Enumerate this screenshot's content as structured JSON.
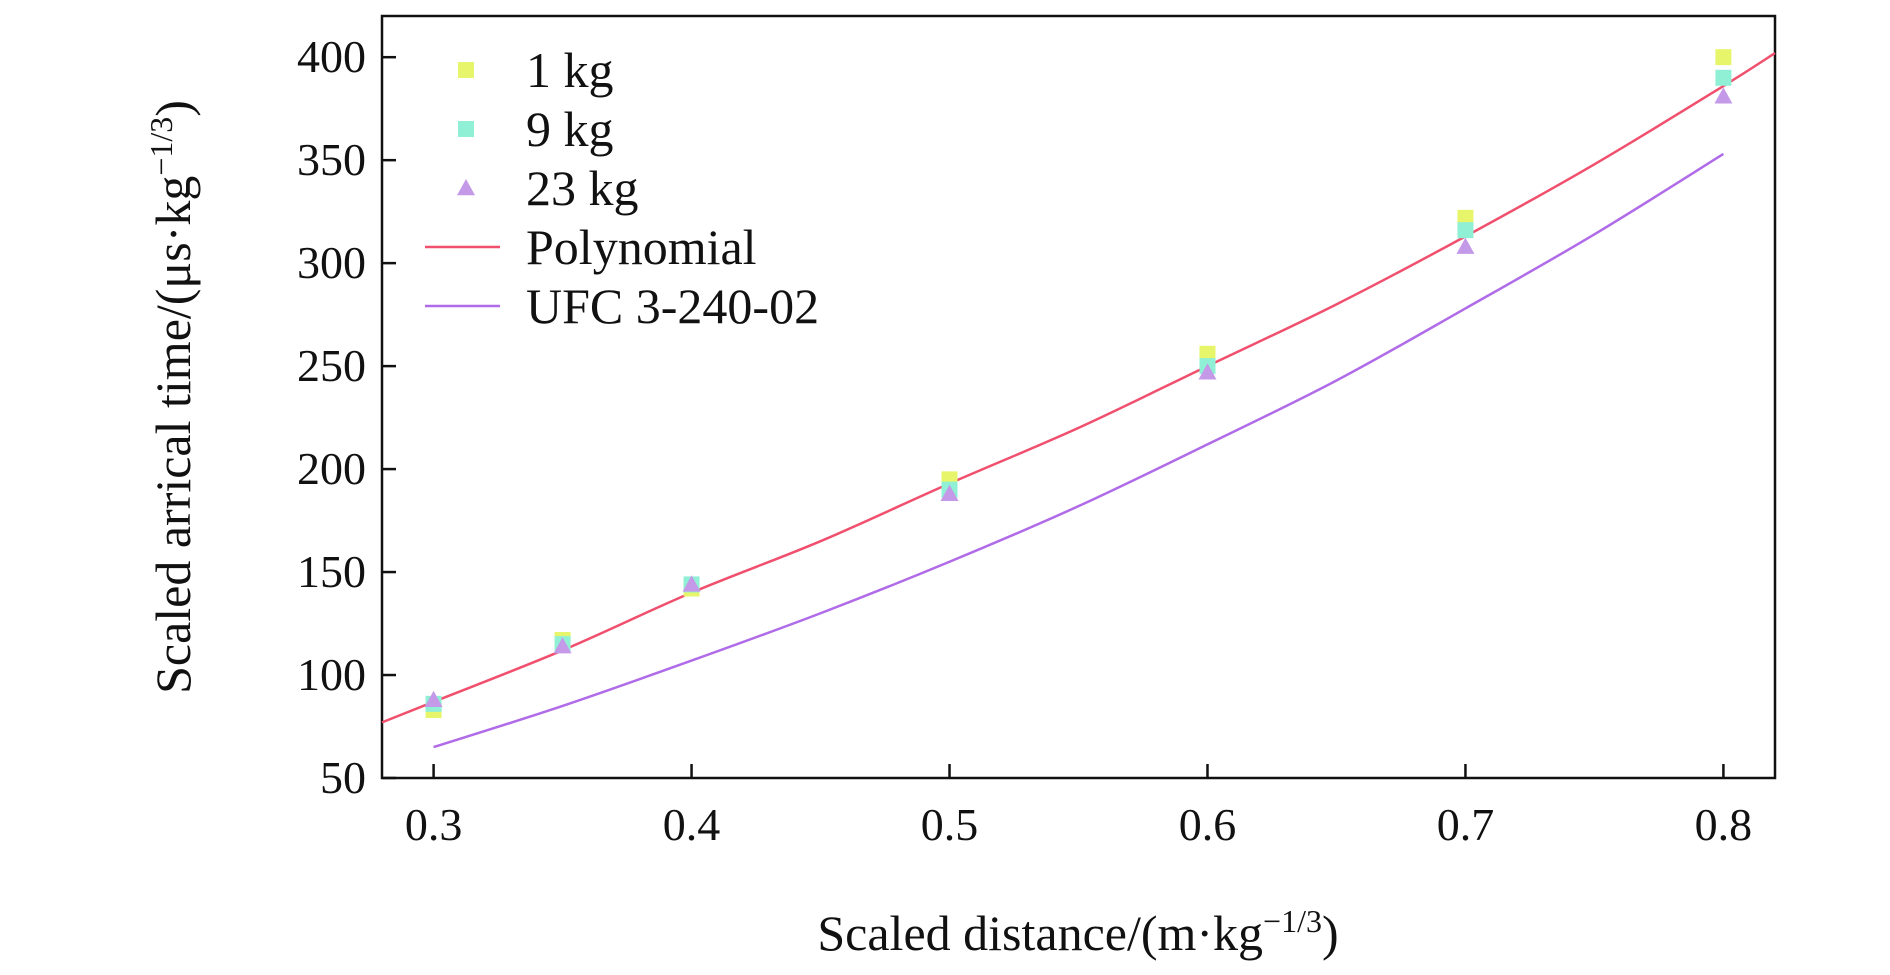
{
  "chart_data": {
    "type": "scatter",
    "title": "",
    "xlabel": {
      "base": "Scaled distance/(m·kg",
      "sup": "−1/3",
      "tail": ")"
    },
    "ylabel": {
      "base": "Scaled arrical time/(μs·kg",
      "sup": "−1/3",
      "tail": ")"
    },
    "xlim": [
      0.28,
      0.82
    ],
    "ylim": [
      50,
      420
    ],
    "x_ticks": [
      0.3,
      0.4,
      0.5,
      0.6,
      0.7,
      0.8
    ],
    "x_tick_labels": [
      "0.3",
      "0.4",
      "0.5",
      "0.6",
      "0.7",
      "0.8"
    ],
    "y_ticks": [
      50,
      100,
      150,
      200,
      250,
      300,
      350,
      400
    ],
    "y_tick_labels": [
      "50",
      "100",
      "150",
      "200",
      "250",
      "300",
      "350",
      "400"
    ],
    "grid": false,
    "legend_position": "top-left",
    "series": [
      {
        "name": "1 kg",
        "kind": "points",
        "marker": "square",
        "color": "#e6f56a",
        "x": [
          0.3,
          0.35,
          0.4,
          0.5,
          0.6,
          0.7,
          0.8
        ],
        "y": [
          83,
          117,
          142,
          195,
          256,
          322,
          400
        ]
      },
      {
        "name": "9 kg",
        "kind": "points",
        "marker": "square",
        "color": "#8ff0d6",
        "x": [
          0.3,
          0.35,
          0.4,
          0.5,
          0.6,
          0.7,
          0.8
        ],
        "y": [
          86,
          115,
          144,
          190,
          250,
          316,
          390
        ]
      },
      {
        "name": "23 kg",
        "kind": "points",
        "marker": "triangle",
        "color": "#c49ae8",
        "x": [
          0.3,
          0.35,
          0.4,
          0.5,
          0.6,
          0.7,
          0.8
        ],
        "y": [
          88,
          114,
          144,
          188,
          247,
          308,
          381
        ]
      },
      {
        "name": "Polynomial",
        "kind": "line",
        "color": "#f0506e",
        "x": [
          0.28,
          0.3,
          0.35,
          0.4,
          0.45,
          0.5,
          0.55,
          0.6,
          0.65,
          0.7,
          0.75,
          0.8,
          0.82
        ],
        "y": [
          77,
          87,
          112,
          140,
          165,
          193,
          220,
          250,
          280,
          313,
          348,
          386,
          402
        ]
      },
      {
        "name": "UFC 3-240-02",
        "kind": "line",
        "color": "#b06be8",
        "x": [
          0.3,
          0.35,
          0.4,
          0.45,
          0.5,
          0.55,
          0.6,
          0.65,
          0.7,
          0.75,
          0.8
        ],
        "y": [
          65,
          85,
          107,
          130,
          155,
          182,
          212,
          243,
          278,
          314,
          353
        ]
      }
    ]
  }
}
